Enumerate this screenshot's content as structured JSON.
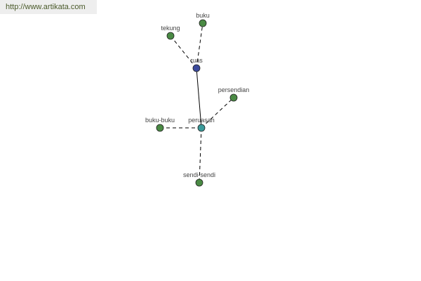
{
  "header": {
    "url_link": "http://www.artikata.com"
  },
  "colors": {
    "root": "#3b4a9c",
    "hub": "#3a9a9a",
    "leaf": "#4a8a44",
    "edge": "#000000"
  },
  "graph": {
    "nodes": [
      {
        "id": "ruas",
        "label": "ruas",
        "kind": "root"
      },
      {
        "id": "buku",
        "label": "buku",
        "kind": "leaf"
      },
      {
        "id": "tekung",
        "label": "tekung",
        "kind": "leaf"
      },
      {
        "id": "peruasan",
        "label": "peruasan",
        "kind": "hub"
      },
      {
        "id": "persendian",
        "label": "persendian",
        "kind": "leaf"
      },
      {
        "id": "buku-buku",
        "label": "buku-buku",
        "kind": "leaf"
      },
      {
        "id": "sendi-sendi",
        "label": "sendi-sendi",
        "kind": "leaf"
      }
    ],
    "edges": [
      {
        "from": "ruas",
        "to": "buku",
        "style": "dashed"
      },
      {
        "from": "ruas",
        "to": "tekung",
        "style": "dashed"
      },
      {
        "from": "ruas",
        "to": "peruasan",
        "style": "solid"
      },
      {
        "from": "peruasan",
        "to": "persendian",
        "style": "dashed"
      },
      {
        "from": "peruasan",
        "to": "buku-buku",
        "style": "dashed"
      },
      {
        "from": "peruasan",
        "to": "sendi-sendi",
        "style": "dashed"
      }
    ]
  }
}
